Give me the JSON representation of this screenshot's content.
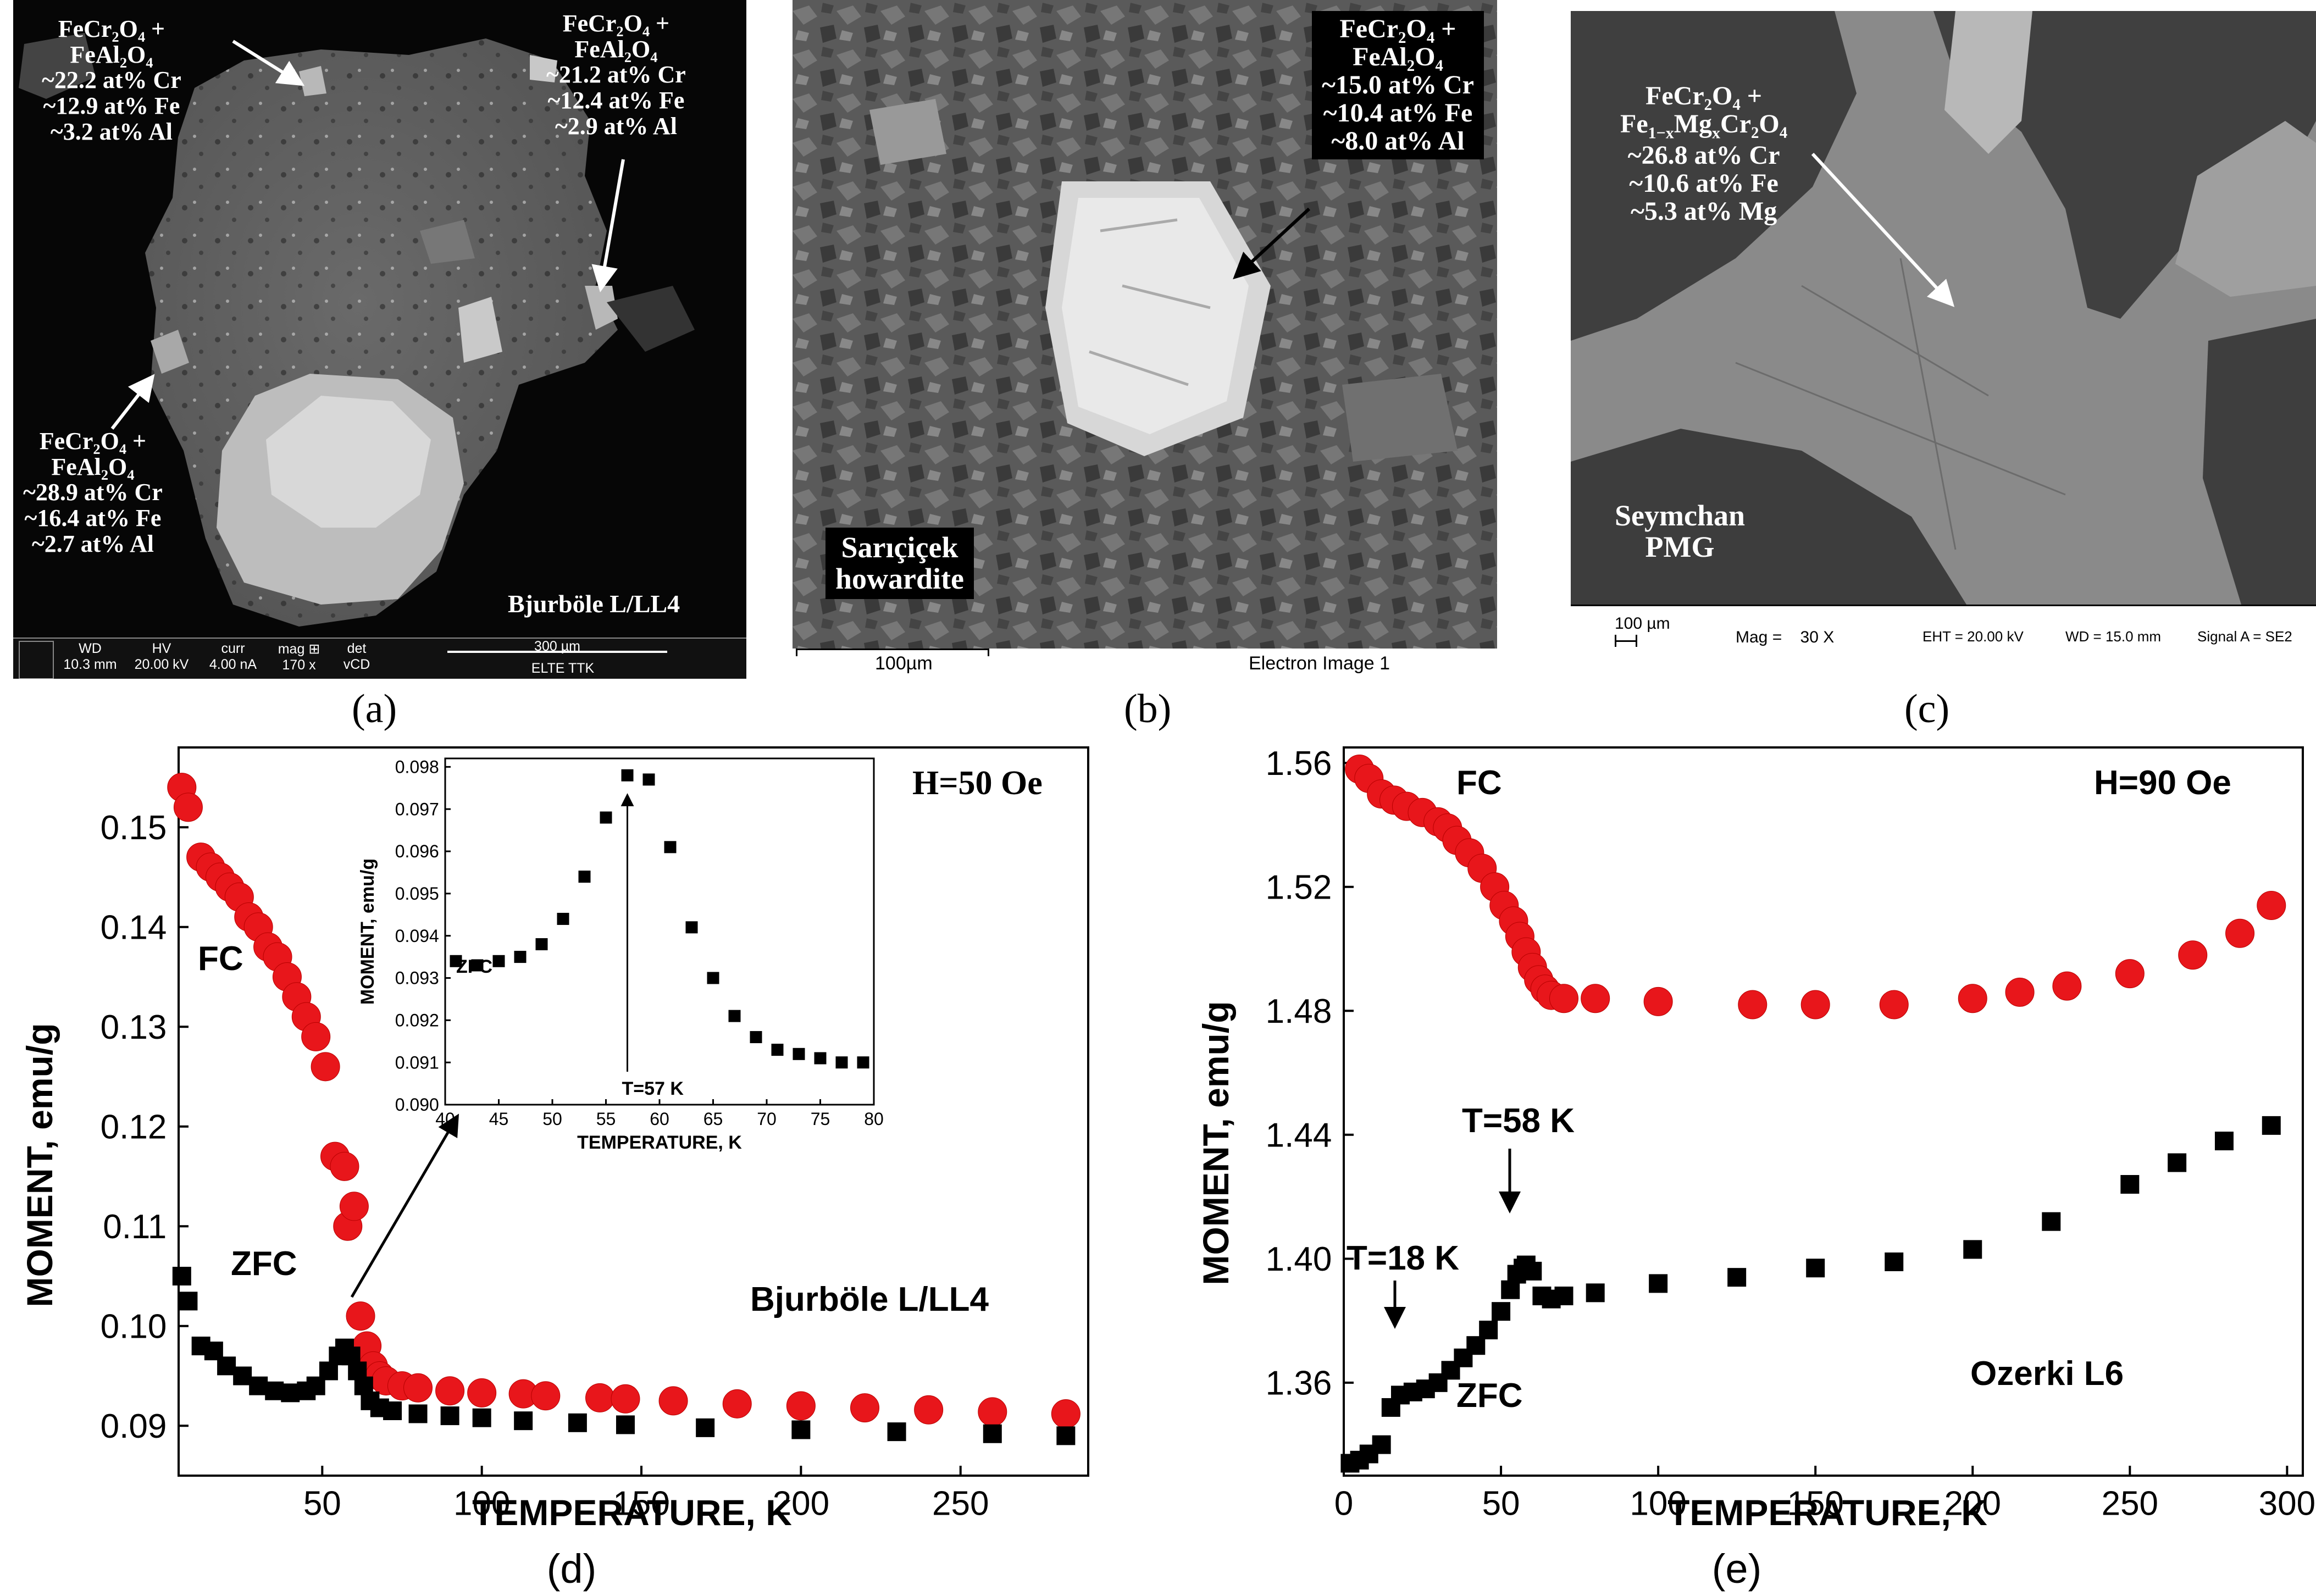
{
  "panels": {
    "a": {
      "caption": "(a)",
      "sample": "Bjurböle L/LL4",
      "annotations": [
        {
          "lines": [
            "FeCr₂O₄ +",
            "FeAl₂O₄",
            "~22.2 at% Cr",
            "~12.9 at% Fe",
            "~3.2 at% Al"
          ]
        },
        {
          "lines": [
            "FeCr₂O₄ +",
            "FeAl₂O₄",
            "~21.2 at% Cr",
            "~12.4 at% Fe",
            "~2.9 at% Al"
          ]
        },
        {
          "lines": [
            "FeCr₂O₄ +",
            "FeAl₂O₄",
            "~28.9 at% Cr",
            "~16.4 at% Fe",
            "~2.7 at% Al"
          ]
        }
      ],
      "databar": {
        "headers": [
          "WD",
          "HV",
          "curr",
          "mag ⊞",
          "det"
        ],
        "values": [
          "10.3 mm",
          "20.00 kV",
          "4.00 nA",
          "170 x",
          "vCD"
        ],
        "scale": "300 µm",
        "lab": "ELTE TTK"
      }
    },
    "b": {
      "caption": "(b)",
      "sample_lines": [
        "Sarıçiçek",
        "howardite"
      ],
      "annotation": {
        "lines": [
          "FeCr₂O₄ +",
          "FeAl₂O₄",
          "~15.0 at% Cr",
          "~10.4 at% Fe",
          "~8.0 at% Al"
        ]
      },
      "scale": "100µm",
      "image_label": "Electron Image 1"
    },
    "c": {
      "caption": "(c)",
      "sample_lines": [
        "Seymchan",
        "PMG"
      ],
      "annotation": {
        "line1": "FeCr₂O₄ +",
        "line2a": "Fe",
        "line2b": "1−x",
        "line2c": "Mg",
        "line2d": "x",
        "line2e": "Cr₂O₄",
        "lines": [
          "~26.8 at% Cr",
          "~10.6 at% Fe",
          "~5.3 at% Mg"
        ]
      },
      "scale": "100 µm",
      "mag": "Mag =    30 X",
      "eht": "EHT = 20.00 kV",
      "wd": "WD = 15.0 mm",
      "signal": "Signal A = SE2"
    },
    "d": {
      "caption": "(d)",
      "field": "H=50 Oe",
      "sample": "Bjurböle L/LL4",
      "fc_label": "FC",
      "zfc_label": "ZFC",
      "inset_zfc_label": "ZFC",
      "inset_t_label": "T=57 K"
    },
    "e": {
      "caption": "(e)",
      "field": "H=90 Oe",
      "sample": "Ozerki L6",
      "fc_label": "FC",
      "zfc_label": "ZFC",
      "t58_label": "T=58 K",
      "t18_label": "T=18 K"
    }
  },
  "colors": {
    "fc": "#e8161b",
    "zfc": "#000000"
  },
  "chart_data": [
    {
      "type": "scatter",
      "panel": "d",
      "xlabel": "TEMPERATURE,  K",
      "ylabel": "MOMENT,  emu/g",
      "xlim": [
        5,
        290
      ],
      "ylim": [
        0.085,
        0.158
      ],
      "xticks": [
        50,
        100,
        150,
        200,
        250
      ],
      "yticks": [
        0.09,
        0.1,
        0.11,
        0.12,
        0.13,
        0.14,
        0.15
      ],
      "series": [
        {
          "name": "FC",
          "marker": "circle",
          "color": "#e8161b",
          "x": [
            6,
            8,
            12,
            15,
            18,
            21,
            24,
            27,
            30,
            33,
            36,
            39,
            42,
            45,
            48,
            51,
            54,
            57,
            58,
            60,
            62,
            64,
            66,
            68,
            70,
            75,
            80,
            90,
            100,
            113,
            120,
            137,
            145,
            160,
            180,
            200,
            220,
            240,
            260,
            283
          ],
          "y": [
            0.154,
            0.152,
            0.147,
            0.146,
            0.145,
            0.144,
            0.143,
            0.141,
            0.14,
            0.138,
            0.137,
            0.135,
            0.133,
            0.131,
            0.129,
            0.126,
            0.117,
            0.116,
            0.11,
            0.112,
            0.101,
            0.098,
            0.096,
            0.095,
            0.0945,
            0.094,
            0.0938,
            0.0935,
            0.0933,
            0.0932,
            0.093,
            0.0928,
            0.0927,
            0.0925,
            0.0922,
            0.092,
            0.0918,
            0.0916,
            0.0914,
            0.0912
          ]
        },
        {
          "name": "ZFC",
          "marker": "square",
          "color": "#000000",
          "x": [
            6,
            8,
            12,
            16,
            20,
            25,
            30,
            35,
            40,
            45,
            48,
            52,
            55,
            57,
            59,
            61,
            63,
            65,
            68,
            72,
            80,
            90,
            100,
            113,
            130,
            145,
            170,
            200,
            230,
            260,
            283
          ],
          "y": [
            0.105,
            0.1025,
            0.098,
            0.0975,
            0.096,
            0.095,
            0.094,
            0.0935,
            0.0933,
            0.0935,
            0.094,
            0.0955,
            0.097,
            0.0978,
            0.097,
            0.0955,
            0.094,
            0.0925,
            0.0918,
            0.0915,
            0.0912,
            0.091,
            0.0908,
            0.0905,
            0.0903,
            0.0901,
            0.0898,
            0.0896,
            0.0894,
            0.0892,
            0.089
          ]
        }
      ],
      "inset": {
        "type": "scatter",
        "xlabel": "TEMPERATURE,  K",
        "ylabel": "MOMENT,  emu/g",
        "xlim": [
          40,
          80
        ],
        "ylim": [
          0.09,
          0.0982
        ],
        "xticks": [
          40,
          45,
          50,
          55,
          60,
          65,
          70,
          75,
          80
        ],
        "yticks": [
          0.09,
          0.091,
          0.092,
          0.093,
          0.094,
          0.095,
          0.096,
          0.097,
          0.098
        ],
        "series": [
          {
            "name": "ZFC",
            "marker": "square",
            "color": "#000000",
            "x": [
              41,
              43,
              45,
              47,
              49,
              51,
              53,
              55,
              57,
              59,
              61,
              63,
              65,
              67,
              69,
              71,
              73,
              75,
              77,
              79
            ],
            "y": [
              0.0934,
              0.0933,
              0.0934,
              0.0935,
              0.0938,
              0.0944,
              0.0954,
              0.0968,
              0.0978,
              0.0977,
              0.0961,
              0.0942,
              0.093,
              0.0921,
              0.0916,
              0.0913,
              0.0912,
              0.0911,
              0.091,
              0.091
            ]
          }
        ]
      }
    },
    {
      "type": "scatter",
      "panel": "e",
      "xlabel": "TEMPERATURE,  K",
      "ylabel": "MOMENT,  emu/g",
      "xlim": [
        0,
        305
      ],
      "ylim": [
        1.33,
        1.565
      ],
      "xticks": [
        0,
        50,
        100,
        150,
        200,
        250,
        300
      ],
      "yticks": [
        1.36,
        1.4,
        1.44,
        1.48,
        1.52,
        1.56
      ],
      "series": [
        {
          "name": "FC",
          "marker": "circle",
          "color": "#e8161b",
          "x": [
            5,
            8,
            12,
            16,
            20,
            25,
            30,
            33,
            36,
            40,
            44,
            48,
            51,
            54,
            56,
            58,
            60,
            62,
            64,
            66,
            70,
            80,
            100,
            130,
            150,
            175,
            200,
            215,
            230,
            250,
            270,
            285,
            295
          ],
          "y": [
            1.558,
            1.555,
            1.55,
            1.548,
            1.546,
            1.544,
            1.541,
            1.539,
            1.535,
            1.531,
            1.526,
            1.52,
            1.514,
            1.509,
            1.504,
            1.499,
            1.494,
            1.49,
            1.487,
            1.485,
            1.484,
            1.484,
            1.483,
            1.482,
            1.482,
            1.482,
            1.484,
            1.486,
            1.488,
            1.492,
            1.498,
            1.505,
            1.514
          ]
        },
        {
          "name": "ZFC",
          "marker": "square",
          "color": "#000000",
          "x": [
            2,
            5,
            8,
            12,
            15,
            18,
            22,
            26,
            30,
            34,
            38,
            42,
            46,
            50,
            53,
            55,
            57,
            58,
            60,
            63,
            66,
            70,
            80,
            100,
            125,
            150,
            175,
            200,
            225,
            250,
            265,
            280,
            295
          ],
          "y": [
            1.334,
            1.335,
            1.337,
            1.34,
            1.352,
            1.356,
            1.357,
            1.358,
            1.36,
            1.364,
            1.368,
            1.372,
            1.377,
            1.383,
            1.39,
            1.395,
            1.397,
            1.398,
            1.396,
            1.388,
            1.387,
            1.388,
            1.389,
            1.392,
            1.394,
            1.397,
            1.399,
            1.403,
            1.412,
            1.424,
            1.431,
            1.438,
            1.443
          ]
        }
      ]
    }
  ]
}
